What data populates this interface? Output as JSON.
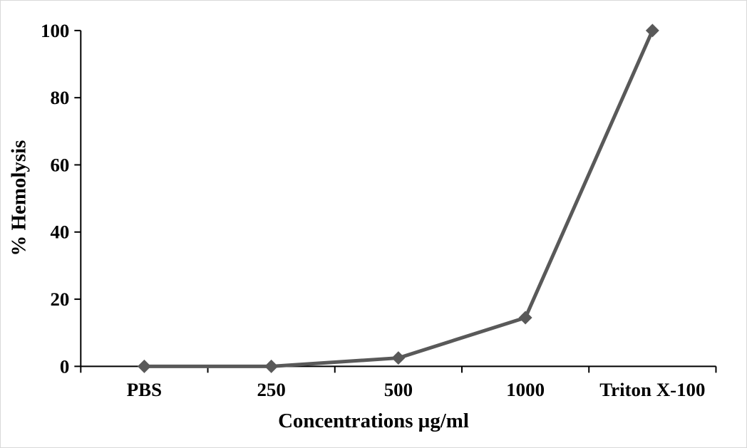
{
  "chart_data": {
    "type": "line",
    "categories": [
      "PBS",
      "250",
      "500",
      "1000",
      "Triton X-100"
    ],
    "series": [
      {
        "name": "% Hemolysis",
        "values": [
          0,
          0,
          2.5,
          14.5,
          100
        ]
      }
    ],
    "title": "",
    "xlabel": "Concentrations µg/ml",
    "ylabel": "% Hemolysis",
    "ylim": [
      0,
      100
    ],
    "yticks": [
      0,
      20,
      40,
      60,
      80,
      100
    ],
    "grid": false,
    "legend_position": "none",
    "marker": "diamond",
    "line_color": "#595959",
    "marker_color": "#595959",
    "axis_color": "#000000",
    "background_color": "#ffffff"
  }
}
